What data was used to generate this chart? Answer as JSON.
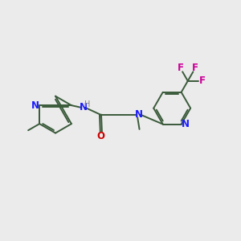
{
  "bg_color": "#ebebeb",
  "bond_color": "#3a5a3a",
  "n_color": "#1a1aff",
  "o_color": "#cc0000",
  "f_color": "#cc0099",
  "h_color": "#808080",
  "lw": 1.4,
  "dbo": 0.07,
  "figsize": [
    3.0,
    3.0
  ],
  "dpi": 100,
  "xlim": [
    0,
    10
  ],
  "ylim": [
    0,
    10
  ]
}
